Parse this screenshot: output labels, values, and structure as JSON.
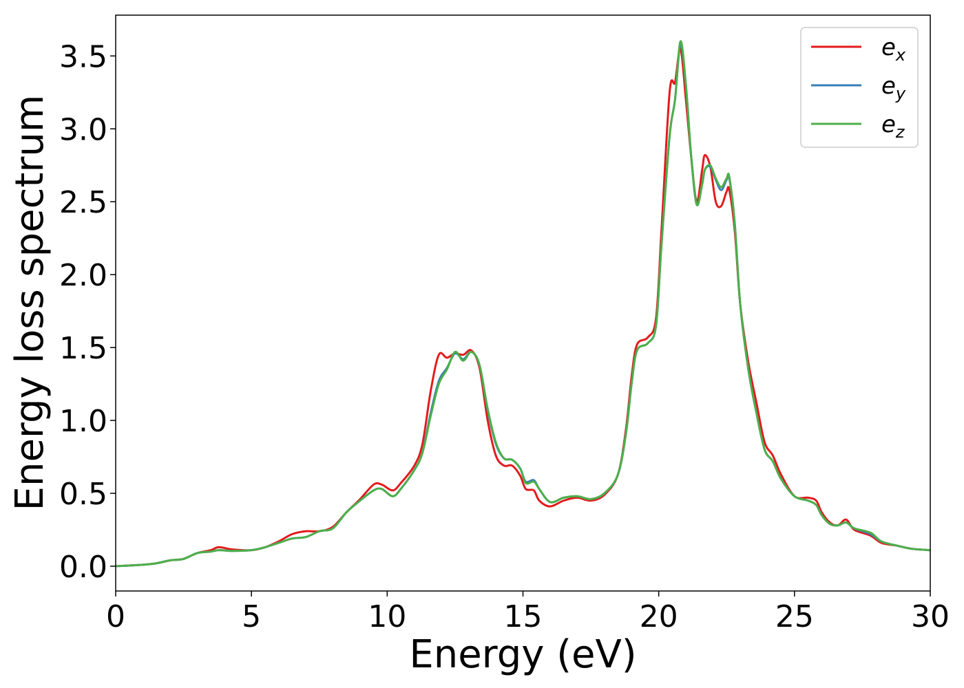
{
  "chart_data": {
    "type": "line",
    "title": "",
    "xlabel": "Energy (eV)",
    "ylabel": "Energy loss spectrum",
    "xlim": [
      0,
      30
    ],
    "ylim": [
      -0.17,
      3.78
    ],
    "xticks": [
      "0",
      "5",
      "10",
      "15",
      "20",
      "25",
      "30"
    ],
    "xtick_values": [
      0,
      5,
      10,
      15,
      20,
      25,
      30
    ],
    "yticks": [
      "0.0",
      "0.5",
      "1.0",
      "1.5",
      "2.0",
      "2.5",
      "3.0",
      "3.5"
    ],
    "ytick_values": [
      0,
      0.5,
      1.0,
      1.5,
      2.0,
      2.5,
      3.0,
      3.5
    ],
    "grid": false,
    "legend_position": "top-right",
    "series": [
      {
        "name": "e_x",
        "legend_base": "e",
        "legend_sub": "x",
        "color": "#e41a1c",
        "points": [
          [
            0,
            0
          ],
          [
            1,
            0.01
          ],
          [
            1.5,
            0.02
          ],
          [
            2,
            0.04
          ],
          [
            2.5,
            0.05
          ],
          [
            3,
            0.09
          ],
          [
            3.5,
            0.11
          ],
          [
            3.8,
            0.13
          ],
          [
            4.3,
            0.115
          ],
          [
            5,
            0.11
          ],
          [
            5.5,
            0.13
          ],
          [
            6,
            0.17
          ],
          [
            6.5,
            0.22
          ],
          [
            7,
            0.24
          ],
          [
            7.5,
            0.24
          ],
          [
            8,
            0.27
          ],
          [
            8.5,
            0.37
          ],
          [
            9,
            0.46
          ],
          [
            9.5,
            0.56
          ],
          [
            9.8,
            0.56
          ],
          [
            10.2,
            0.52
          ],
          [
            10.5,
            0.57
          ],
          [
            11,
            0.69
          ],
          [
            11.3,
            0.84
          ],
          [
            11.6,
            1.2
          ],
          [
            11.9,
            1.45
          ],
          [
            12.2,
            1.43
          ],
          [
            12.5,
            1.46
          ],
          [
            12.8,
            1.45
          ],
          [
            13.1,
            1.48
          ],
          [
            13.4,
            1.36
          ],
          [
            13.7,
            1.0
          ],
          [
            14,
            0.76
          ],
          [
            14.3,
            0.69
          ],
          [
            14.6,
            0.69
          ],
          [
            14.9,
            0.62
          ],
          [
            15.1,
            0.53
          ],
          [
            15.4,
            0.52
          ],
          [
            15.6,
            0.45
          ],
          [
            16,
            0.41
          ],
          [
            16.5,
            0.45
          ],
          [
            17,
            0.47
          ],
          [
            17.5,
            0.45
          ],
          [
            18,
            0.49
          ],
          [
            18.5,
            0.63
          ],
          [
            18.8,
            0.95
          ],
          [
            19,
            1.3
          ],
          [
            19.2,
            1.52
          ],
          [
            19.6,
            1.57
          ],
          [
            19.9,
            1.7
          ],
          [
            20.1,
            2.3
          ],
          [
            20.4,
            3.25
          ],
          [
            20.6,
            3.32
          ],
          [
            20.8,
            3.55
          ],
          [
            21,
            3.2
          ],
          [
            21.2,
            2.8
          ],
          [
            21.4,
            2.5
          ],
          [
            21.6,
            2.72
          ],
          [
            21.7,
            2.82
          ],
          [
            21.9,
            2.74
          ],
          [
            22.1,
            2.5
          ],
          [
            22.3,
            2.47
          ],
          [
            22.5,
            2.57
          ],
          [
            22.6,
            2.58
          ],
          [
            22.8,
            2.3
          ],
          [
            23,
            1.8
          ],
          [
            23.3,
            1.4
          ],
          [
            23.6,
            1.12
          ],
          [
            23.9,
            0.85
          ],
          [
            24.2,
            0.76
          ],
          [
            24.5,
            0.63
          ],
          [
            25,
            0.48
          ],
          [
            25.5,
            0.47
          ],
          [
            25.8,
            0.45
          ],
          [
            26,
            0.37
          ],
          [
            26.3,
            0.3
          ],
          [
            26.6,
            0.28
          ],
          [
            26.9,
            0.32
          ],
          [
            27.2,
            0.25
          ],
          [
            27.8,
            0.21
          ],
          [
            28.2,
            0.16
          ],
          [
            28.8,
            0.14
          ],
          [
            29.3,
            0.12
          ],
          [
            30,
            0.11
          ]
        ]
      },
      {
        "name": "e_y",
        "legend_base": "e",
        "legend_sub": "y",
        "color": "#377eb8",
        "points": [
          [
            0,
            0
          ],
          [
            1,
            0.01
          ],
          [
            1.5,
            0.02
          ],
          [
            2,
            0.04
          ],
          [
            2.5,
            0.05
          ],
          [
            3,
            0.09
          ],
          [
            3.5,
            0.1
          ],
          [
            3.8,
            0.11
          ],
          [
            4.3,
            0.105
          ],
          [
            5,
            0.11
          ],
          [
            5.5,
            0.13
          ],
          [
            6,
            0.16
          ],
          [
            6.5,
            0.19
          ],
          [
            7,
            0.2
          ],
          [
            7.5,
            0.24
          ],
          [
            8,
            0.26
          ],
          [
            8.5,
            0.37
          ],
          [
            9,
            0.45
          ],
          [
            9.5,
            0.52
          ],
          [
            9.8,
            0.53
          ],
          [
            10.2,
            0.48
          ],
          [
            10.5,
            0.53
          ],
          [
            11,
            0.66
          ],
          [
            11.3,
            0.78
          ],
          [
            11.6,
            1.05
          ],
          [
            11.9,
            1.27
          ],
          [
            12.2,
            1.36
          ],
          [
            12.5,
            1.46
          ],
          [
            12.8,
            1.42
          ],
          [
            13.1,
            1.47
          ],
          [
            13.4,
            1.38
          ],
          [
            13.7,
            1.07
          ],
          [
            14,
            0.84
          ],
          [
            14.3,
            0.74
          ],
          [
            14.6,
            0.73
          ],
          [
            14.9,
            0.67
          ],
          [
            15.1,
            0.58
          ],
          [
            15.4,
            0.59
          ],
          [
            15.6,
            0.53
          ],
          [
            16,
            0.44
          ],
          [
            16.5,
            0.47
          ],
          [
            17,
            0.48
          ],
          [
            17.5,
            0.46
          ],
          [
            18,
            0.5
          ],
          [
            18.5,
            0.63
          ],
          [
            18.8,
            0.92
          ],
          [
            19,
            1.25
          ],
          [
            19.2,
            1.48
          ],
          [
            19.6,
            1.53
          ],
          [
            19.9,
            1.65
          ],
          [
            20.1,
            2.2
          ],
          [
            20.4,
            2.95
          ],
          [
            20.6,
            3.2
          ],
          [
            20.8,
            3.58
          ],
          [
            21,
            3.3
          ],
          [
            21.2,
            2.8
          ],
          [
            21.4,
            2.48
          ],
          [
            21.6,
            2.62
          ],
          [
            21.7,
            2.72
          ],
          [
            21.9,
            2.74
          ],
          [
            22.1,
            2.65
          ],
          [
            22.3,
            2.58
          ],
          [
            22.5,
            2.65
          ],
          [
            22.6,
            2.66
          ],
          [
            22.8,
            2.35
          ],
          [
            23,
            1.8
          ],
          [
            23.3,
            1.35
          ],
          [
            23.6,
            1.05
          ],
          [
            23.9,
            0.8
          ],
          [
            24.2,
            0.72
          ],
          [
            24.5,
            0.6
          ],
          [
            25,
            0.48
          ],
          [
            25.5,
            0.45
          ],
          [
            25.8,
            0.42
          ],
          [
            26,
            0.35
          ],
          [
            26.3,
            0.29
          ],
          [
            26.6,
            0.28
          ],
          [
            26.9,
            0.3
          ],
          [
            27.2,
            0.26
          ],
          [
            27.8,
            0.22
          ],
          [
            28.2,
            0.17
          ],
          [
            28.8,
            0.14
          ],
          [
            29.3,
            0.12
          ],
          [
            30,
            0.11
          ]
        ]
      },
      {
        "name": "e_z",
        "legend_base": "e",
        "legend_sub": "z",
        "color": "#4daf4a",
        "points": [
          [
            0,
            0
          ],
          [
            1,
            0.01
          ],
          [
            1.5,
            0.02
          ],
          [
            2,
            0.04
          ],
          [
            2.5,
            0.05
          ],
          [
            3,
            0.09
          ],
          [
            3.5,
            0.1
          ],
          [
            3.8,
            0.11
          ],
          [
            4.3,
            0.105
          ],
          [
            5,
            0.11
          ],
          [
            5.5,
            0.13
          ],
          [
            6,
            0.16
          ],
          [
            6.5,
            0.19
          ],
          [
            7,
            0.2
          ],
          [
            7.5,
            0.24
          ],
          [
            8,
            0.26
          ],
          [
            8.5,
            0.37
          ],
          [
            9,
            0.45
          ],
          [
            9.5,
            0.52
          ],
          [
            9.8,
            0.53
          ],
          [
            10.2,
            0.48
          ],
          [
            10.5,
            0.53
          ],
          [
            11,
            0.66
          ],
          [
            11.3,
            0.78
          ],
          [
            11.6,
            1.03
          ],
          [
            11.9,
            1.25
          ],
          [
            12.2,
            1.35
          ],
          [
            12.5,
            1.47
          ],
          [
            12.8,
            1.41
          ],
          [
            13.1,
            1.47
          ],
          [
            13.4,
            1.38
          ],
          [
            13.7,
            1.08
          ],
          [
            14,
            0.85
          ],
          [
            14.3,
            0.74
          ],
          [
            14.6,
            0.73
          ],
          [
            14.9,
            0.67
          ],
          [
            15.1,
            0.57
          ],
          [
            15.4,
            0.58
          ],
          [
            15.6,
            0.53
          ],
          [
            16,
            0.44
          ],
          [
            16.5,
            0.47
          ],
          [
            17,
            0.48
          ],
          [
            17.5,
            0.46
          ],
          [
            18,
            0.5
          ],
          [
            18.5,
            0.63
          ],
          [
            18.8,
            0.92
          ],
          [
            19,
            1.25
          ],
          [
            19.2,
            1.48
          ],
          [
            19.6,
            1.53
          ],
          [
            19.9,
            1.65
          ],
          [
            20.1,
            2.2
          ],
          [
            20.4,
            2.95
          ],
          [
            20.6,
            3.2
          ],
          [
            20.8,
            3.6
          ],
          [
            21,
            3.3
          ],
          [
            21.2,
            2.8
          ],
          [
            21.4,
            2.48
          ],
          [
            21.6,
            2.62
          ],
          [
            21.7,
            2.72
          ],
          [
            21.9,
            2.75
          ],
          [
            22.1,
            2.66
          ],
          [
            22.3,
            2.6
          ],
          [
            22.5,
            2.66
          ],
          [
            22.6,
            2.67
          ],
          [
            22.8,
            2.35
          ],
          [
            23,
            1.8
          ],
          [
            23.3,
            1.35
          ],
          [
            23.6,
            1.05
          ],
          [
            23.9,
            0.8
          ],
          [
            24.2,
            0.72
          ],
          [
            24.5,
            0.6
          ],
          [
            25,
            0.48
          ],
          [
            25.5,
            0.45
          ],
          [
            25.8,
            0.42
          ],
          [
            26,
            0.35
          ],
          [
            26.3,
            0.29
          ],
          [
            26.6,
            0.28
          ],
          [
            26.9,
            0.3
          ],
          [
            27.2,
            0.26
          ],
          [
            27.8,
            0.23
          ],
          [
            28.2,
            0.17
          ],
          [
            28.8,
            0.14
          ],
          [
            29.3,
            0.12
          ],
          [
            30,
            0.11
          ]
        ]
      }
    ]
  }
}
